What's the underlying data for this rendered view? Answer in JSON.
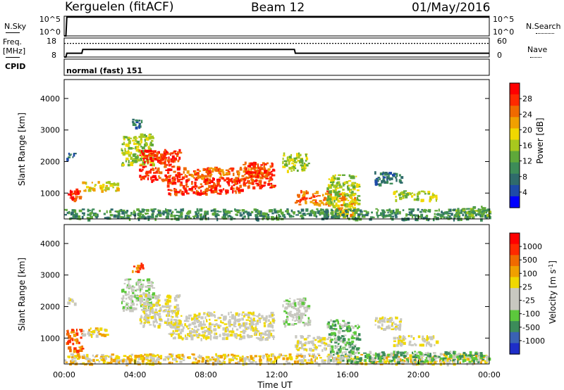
{
  "header": {
    "radar": "Kerguelen  (fitACF)",
    "beam": "Beam 12",
    "date": "01/May/2016"
  },
  "panels": {
    "nsky": {
      "left_label": "N.Sky",
      "right_label": "N.Search",
      "left_ticks": [
        "10^5",
        "10^0"
      ],
      "right_ticks": [
        "10^5",
        "10^0"
      ]
    },
    "freq": {
      "left_label_1": "Freq.",
      "left_label_2": "[MHz]",
      "right_label": "Nave",
      "left_ticks": [
        "18",
        "8"
      ],
      "right_ticks": [
        "60",
        "0"
      ]
    },
    "cpid": {
      "label": "CPID",
      "mode": "normal (fast) 151"
    }
  },
  "chart_data": [
    {
      "type": "line",
      "name": "nsky-nsearch",
      "x_unit": "hours UT",
      "xlim": [
        0,
        24
      ],
      "ylog": true,
      "ylim": [
        1,
        100000
      ],
      "series": [
        {
          "style": "solid",
          "x": [
            0,
            0.1,
            0.15,
            24
          ],
          "y": [
            1,
            1,
            60000,
            60000
          ]
        }
      ]
    },
    {
      "type": "line",
      "name": "freq-nave",
      "x_unit": "hours UT",
      "xlim": [
        0,
        24
      ],
      "ylim_left": [
        8,
        18
      ],
      "ylim_right": [
        0,
        60
      ],
      "series": [
        {
          "axis": "left",
          "style": "solid",
          "x": [
            0,
            0.1,
            0.15,
            1,
            1.05,
            13,
            13.05,
            24
          ],
          "y": [
            8,
            8,
            10,
            10,
            12,
            12,
            10,
            10
          ]
        },
        {
          "axis": "right",
          "style": "dotted",
          "x": [
            0,
            24
          ],
          "y": [
            43,
            43
          ]
        }
      ]
    },
    {
      "type": "heatmap",
      "name": "power",
      "xlabel": "",
      "ylabel": "Slant Range [km]",
      "xlim": [
        0,
        24
      ],
      "ylim": [
        180,
        4600
      ],
      "yticks": [
        1000,
        2000,
        3000,
        4000
      ],
      "colorbar": {
        "label": "Power [dB]",
        "ticks": [
          "4",
          "8",
          "12",
          "16",
          "20",
          "24",
          "28"
        ],
        "colors": [
          "#0000ff",
          "#1e4aa8",
          "#2f6b6b",
          "#3d8c58",
          "#5fa83a",
          "#a8c81e",
          "#f0d800",
          "#f0a000",
          "#f06a00",
          "#ff2a00",
          "#ff0000"
        ]
      },
      "regions": [
        {
          "x": [
            0.1,
            1.0
          ],
          "y": [
            800,
            1150
          ],
          "level": 9
        },
        {
          "x": [
            1.0,
            3.0
          ],
          "y": [
            1100,
            1400
          ],
          "level": 6
        },
        {
          "x": [
            0.1,
            0.6
          ],
          "y": [
            2100,
            2300
          ],
          "level": 2
        },
        {
          "x": [
            3.2,
            5.0
          ],
          "y": [
            1900,
            2900
          ],
          "level": 5
        },
        {
          "x": [
            4.2,
            6.5
          ],
          "y": [
            1400,
            2400
          ],
          "level": 9
        },
        {
          "x": [
            5.8,
            10.0
          ],
          "y": [
            1000,
            1500
          ],
          "level": 9
        },
        {
          "x": [
            6.5,
            11.5
          ],
          "y": [
            1500,
            1850
          ],
          "level": 8
        },
        {
          "x": [
            10.0,
            11.8
          ],
          "y": [
            1200,
            2000
          ],
          "level": 9
        },
        {
          "x": [
            12.3,
            13.8
          ],
          "y": [
            1700,
            2300
          ],
          "level": 5
        },
        {
          "x": [
            13.0,
            15.0
          ],
          "y": [
            650,
            1100
          ],
          "level": 8
        },
        {
          "x": [
            14.8,
            16.6
          ],
          "y": [
            300,
            1600
          ],
          "level": 5
        },
        {
          "x": [
            15.4,
            16.4
          ],
          "y": [
            300,
            1000
          ],
          "level": 7
        },
        {
          "x": [
            17.5,
            19.0
          ],
          "y": [
            1300,
            1700
          ],
          "level": 2
        },
        {
          "x": [
            18.5,
            21.0
          ],
          "y": [
            800,
            1100
          ],
          "level": 5
        },
        {
          "x": [
            0,
            24
          ],
          "y": [
            200,
            520
          ],
          "level": 3
        },
        {
          "x": [
            22.0,
            24.0
          ],
          "y": [
            200,
            600
          ],
          "level": 4
        },
        {
          "x": [
            3.8,
            4.4
          ],
          "y": [
            3100,
            3400
          ],
          "level": 2
        }
      ]
    },
    {
      "type": "heatmap",
      "name": "velocity",
      "xlabel": "Time UT",
      "ylabel": "Slant Range [km]",
      "xlim": [
        0,
        24
      ],
      "ylim": [
        180,
        4600
      ],
      "yticks": [
        1000,
        2000,
        3000,
        4000
      ],
      "xticks": [
        "00:00",
        "04:00",
        "08:00",
        "12:00",
        "16:00",
        "20:00",
        "00:00"
      ],
      "colorbar": {
        "label": "Velocity [m s^-1]",
        "ticks": [
          "1000",
          "500",
          "100",
          "25",
          "-25",
          "-100",
          "-500",
          "-1000"
        ],
        "colors": [
          "#1e2ec8",
          "#3a62b4",
          "#3c8c5a",
          "#5cc83c",
          "#c8c8c0",
          "#c8c8c0",
          "#f0d800",
          "#f0a000",
          "#f06a00",
          "#ff2a00",
          "#ff0000"
        ]
      },
      "regions": [
        {
          "x": [
            0.1,
            1.0
          ],
          "y": [
            600,
            1300
          ],
          "level": 8
        },
        {
          "x": [
            1.0,
            2.5
          ],
          "y": [
            1100,
            1350
          ],
          "level": 6
        },
        {
          "x": [
            0.1,
            0.6
          ],
          "y": [
            2100,
            2300
          ],
          "level": 5
        },
        {
          "x": [
            3.2,
            5.0
          ],
          "y": [
            1900,
            2900
          ],
          "level": 4
        },
        {
          "x": [
            4.2,
            6.5
          ],
          "y": [
            1400,
            2400
          ],
          "level": 5
        },
        {
          "x": [
            5.8,
            11.8
          ],
          "y": [
            1000,
            1850
          ],
          "level": 5
        },
        {
          "x": [
            12.3,
            13.8
          ],
          "y": [
            1400,
            2300
          ],
          "level": 4
        },
        {
          "x": [
            13.0,
            15.0
          ],
          "y": [
            650,
            1100
          ],
          "level": 5
        },
        {
          "x": [
            14.8,
            16.6
          ],
          "y": [
            300,
            1600
          ],
          "level": 3
        },
        {
          "x": [
            17.5,
            19.0
          ],
          "y": [
            1300,
            1700
          ],
          "level": 5
        },
        {
          "x": [
            18.5,
            21.0
          ],
          "y": [
            800,
            1100
          ],
          "level": 5
        },
        {
          "x": [
            0,
            24
          ],
          "y": [
            200,
            520
          ],
          "level": 6
        },
        {
          "x": [
            16.0,
            24.0
          ],
          "y": [
            250,
            600
          ],
          "level": 3
        },
        {
          "x": [
            3.8,
            4.4
          ],
          "y": [
            3100,
            3400
          ],
          "level": 8
        }
      ]
    }
  ]
}
